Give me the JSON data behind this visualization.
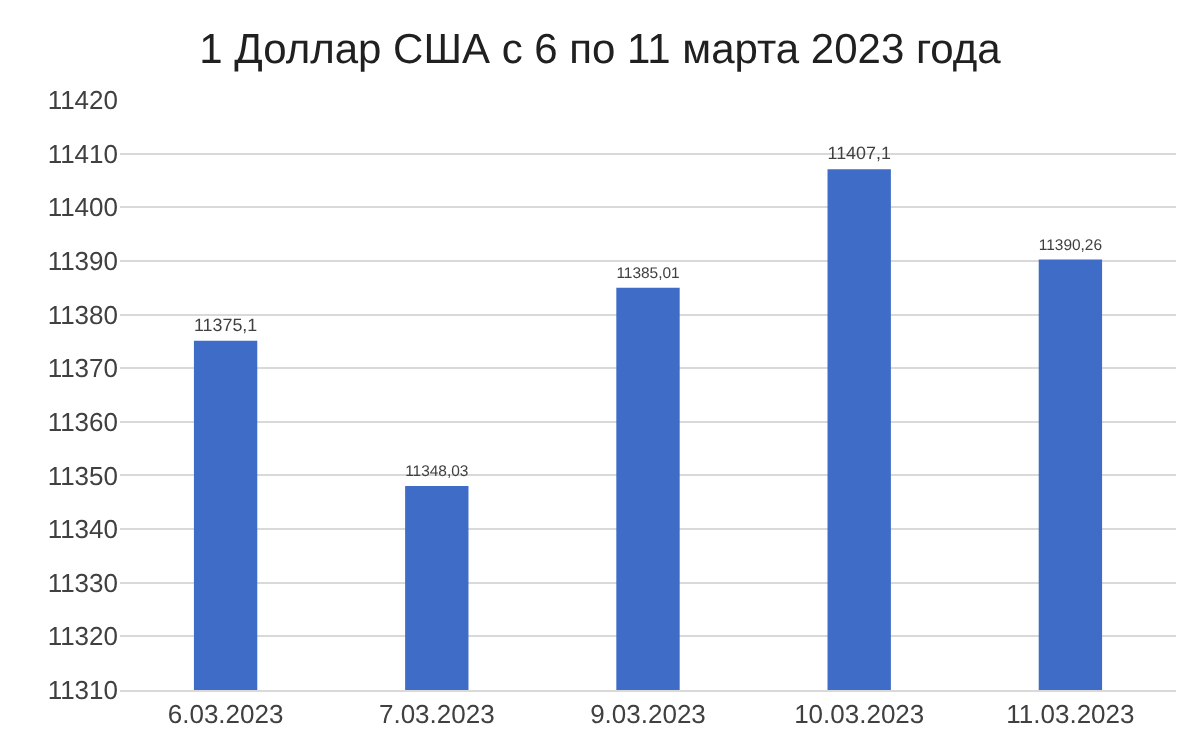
{
  "chart_data": {
    "type": "bar",
    "title": "1 Доллар США с 6 по 11 марта 2023 года",
    "categories": [
      "6.03.2023",
      "7.03.2023",
      "9.03.2023",
      "10.03.2023",
      "11.03.2023"
    ],
    "values": [
      11375.1,
      11348.03,
      11385.01,
      11407.1,
      11390.26
    ],
    "value_labels": [
      "11375,1",
      "11348,03",
      "11385,01",
      "11407,1",
      "11390,26"
    ],
    "color": "#3f6cc6",
    "ylim": [
      11310,
      11420
    ],
    "yticks": [
      11310,
      11320,
      11330,
      11340,
      11350,
      11360,
      11370,
      11380,
      11390,
      11400,
      11410,
      11420
    ],
    "grid": "y"
  }
}
